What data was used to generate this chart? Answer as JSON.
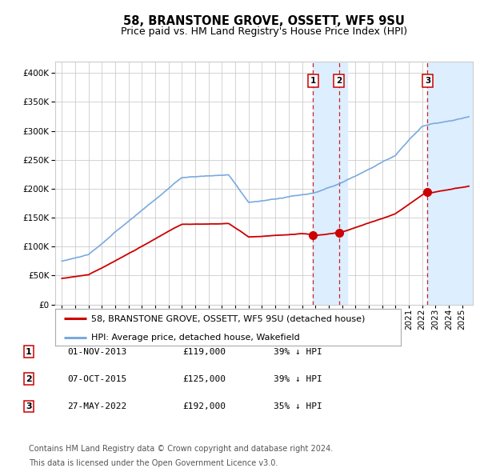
{
  "title": "58, BRANSTONE GROVE, OSSETT, WF5 9SU",
  "subtitle": "Price paid vs. HM Land Registry's House Price Index (HPI)",
  "legend_line1": "58, BRANSTONE GROVE, OSSETT, WF5 9SU (detached house)",
  "legend_line2": "HPI: Average price, detached house, Wakefield",
  "transactions": [
    {
      "label": "1",
      "date": "01-NOV-2013",
      "price": 119000,
      "hpi_pct": "39%",
      "x_year": 2013.83
    },
    {
      "label": "2",
      "date": "07-OCT-2015",
      "price": 125000,
      "hpi_pct": "39%",
      "x_year": 2015.77
    },
    {
      "label": "3",
      "date": "27-MAY-2022",
      "price": 192000,
      "hpi_pct": "35%",
      "x_year": 2022.41
    }
  ],
  "footnote1": "Contains HM Land Registry data © Crown copyright and database right 2024.",
  "footnote2": "This data is licensed under the Open Government Licence v3.0.",
  "hpi_color": "#7aaadd",
  "price_color": "#cc0000",
  "marker_color": "#cc0000",
  "shade_color": "#ddeeff",
  "transaction_line_color": "#cc2222",
  "grid_color": "#cccccc",
  "background_color": "#ffffff",
  "title_fontsize": 10.5,
  "subtitle_fontsize": 9,
  "axis_fontsize": 7.5,
  "legend_fontsize": 8,
  "table_fontsize": 8,
  "footnote_fontsize": 7,
  "ylim": [
    0,
    420000
  ],
  "xlim": [
    1994.5,
    2025.8
  ]
}
